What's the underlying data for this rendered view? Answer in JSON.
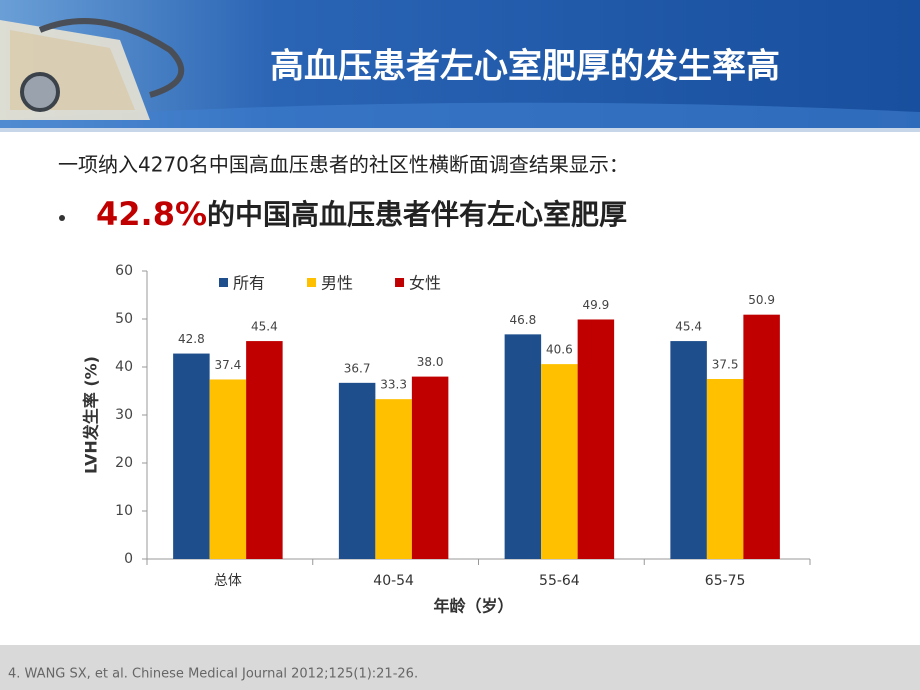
{
  "header": {
    "title": "高血压患者左心室肥厚的发生率高"
  },
  "intro": "一项纳入4270名中国高血压患者的社区性横断面调查结果显示：",
  "bullet": {
    "highlight": "42.8%",
    "text": "的中国高血压患者伴有左心室肥厚"
  },
  "footnote": "4. WANG SX, et al. Chinese Medical Journal 2012;125(1):21-26.",
  "chart_data": {
    "type": "bar",
    "categories": [
      "总体",
      "40-54",
      "55-64",
      "65-75"
    ],
    "series": [
      {
        "name": "所有",
        "color": "#1f4e8c",
        "values": [
          42.8,
          36.7,
          46.8,
          45.4
        ],
        "value_labels": [
          "42.8",
          "36.7",
          "46.8",
          "45.4"
        ]
      },
      {
        "name": "男性",
        "color": "#ffc000",
        "values": [
          37.4,
          33.3,
          40.6,
          37.5
        ],
        "value_labels": [
          "37.4",
          "33.3",
          "40.6",
          "37.5"
        ]
      },
      {
        "name": "女性",
        "color": "#c00000",
        "values": [
          45.4,
          38.0,
          49.9,
          50.9
        ],
        "value_labels": [
          "45.4",
          "38.0",
          "49.9",
          "50.9"
        ]
      }
    ],
    "ylabel": "LVH发生率 (%)",
    "xlabel": "年龄（岁）",
    "ylim": [
      0,
      60
    ],
    "yticks": [
      0,
      10,
      20,
      30,
      40,
      50,
      60
    ],
    "grid": false,
    "legend": "top-left"
  }
}
